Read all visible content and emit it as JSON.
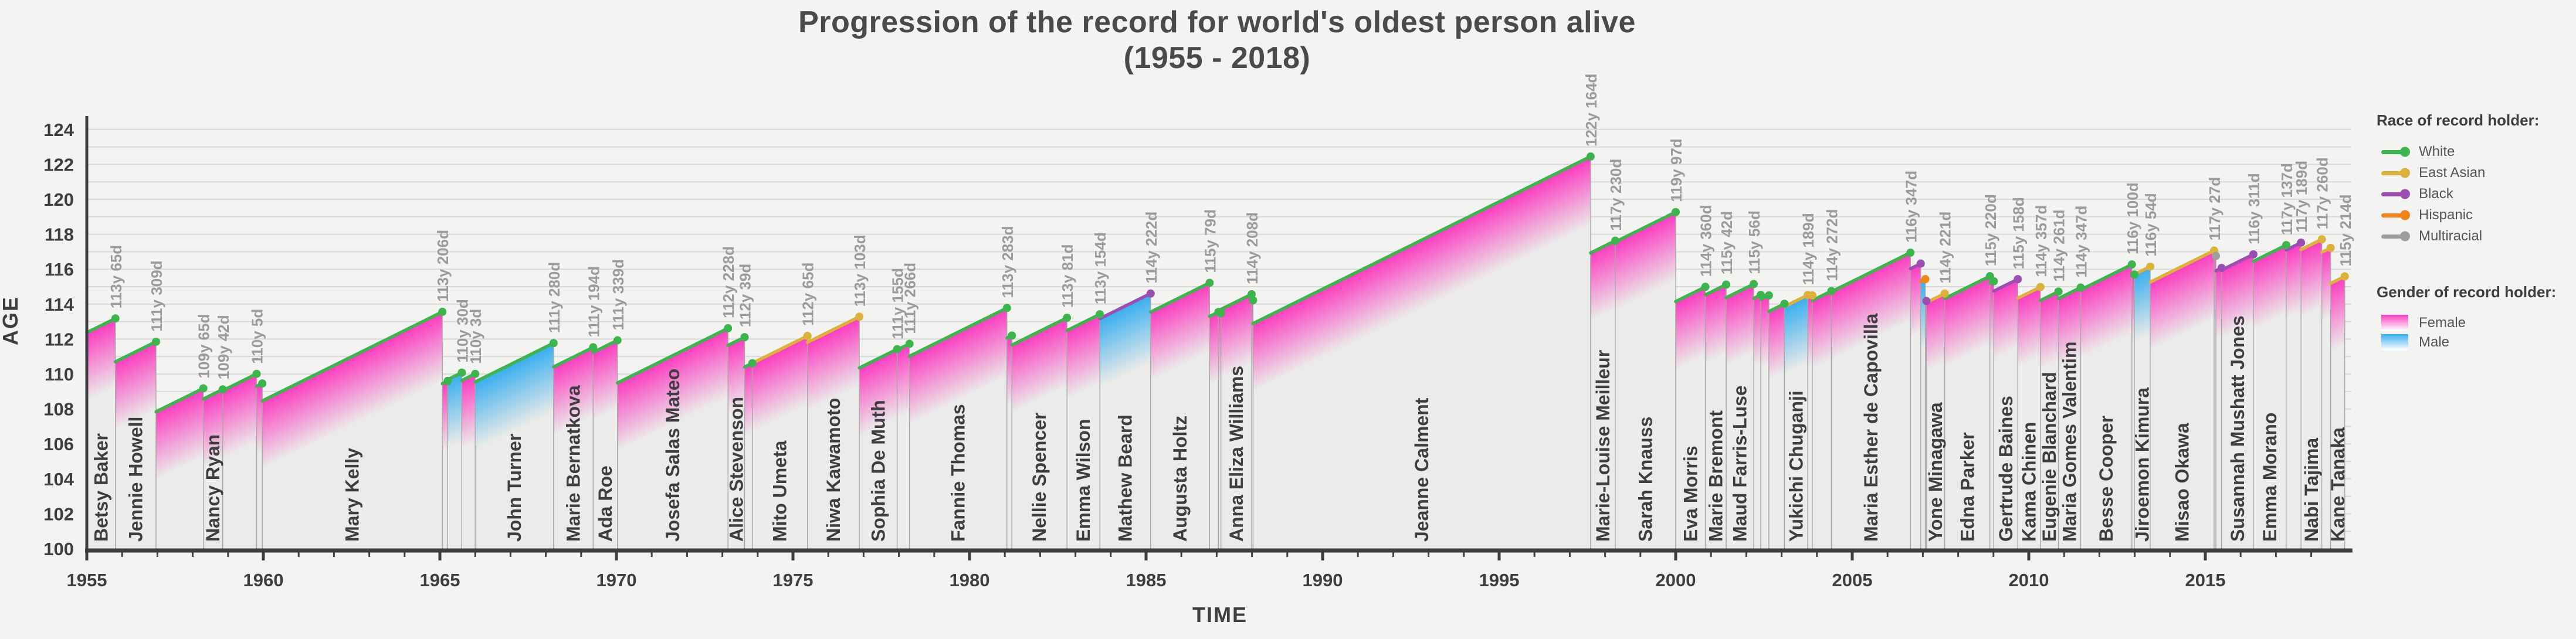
{
  "title": {
    "line1": "Progression of the record for world's oldest person alive",
    "line2": "(1955 - 2018)"
  },
  "axes": {
    "x_label": "TIME",
    "y_label": "AGE",
    "x_ticks": [
      1955,
      1960,
      1965,
      1970,
      1975,
      1980,
      1985,
      1990,
      1995,
      2000,
      2005,
      2010,
      2015
    ],
    "x_range": [
      1955,
      2019
    ],
    "y_ticks": [
      100,
      102,
      104,
      106,
      108,
      110,
      112,
      114,
      116,
      118,
      120,
      122,
      124
    ],
    "y_range": [
      100,
      124
    ],
    "grid_step": 1
  },
  "legend": {
    "race_title": "Race of record holder:",
    "races": [
      {
        "id": "white",
        "label": "White",
        "color": "#3cb64c"
      },
      {
        "id": "east_asian",
        "label": "East Asian",
        "color": "#dcb23a"
      },
      {
        "id": "black",
        "label": "Black",
        "color": "#9c4fb3"
      },
      {
        "id": "hispanic",
        "label": "Hispanic",
        "color": "#f08418"
      },
      {
        "id": "multiracial",
        "label": "Multiracial",
        "color": "#9e9e9e"
      }
    ],
    "gender_title": "Gender of record holder:",
    "genders": [
      {
        "id": "female",
        "label": "Female",
        "color": "#fb3cc1"
      },
      {
        "id": "male",
        "label": "Male",
        "color": "#38aeef"
      }
    ]
  },
  "colors": {
    "background": "#f3f3f1",
    "gridline": "#d9d9d7",
    "axis": "#3e3e42",
    "polygon_fill": "#ebebe9",
    "polygon_border": "#a7a7a5",
    "name_text": "#3e3e42",
    "age_label_text": "#9b9b9f",
    "female": "#fb3cc1",
    "male": "#38aeef"
  },
  "chart_data": {
    "type": "area",
    "subtype": "record-progression-timeline",
    "title": "Progression of the record for world's oldest person alive (1955 - 2018)",
    "xlabel": "TIME",
    "ylabel": "AGE",
    "xlim": [
      1955,
      2019
    ],
    "ylim": [
      100,
      124
    ],
    "grid": "horizontal, every 1 year of age, labels every 2",
    "legend_position": "right",
    "encoding": "Each polygon is one record holder; top edge rises at 1 age-year per calendar year from the year they became the oldest living person to their final age (dot + label). Line/dot color = race, fill gradient = gender.",
    "segments": [
      {
        "name": "Betsy Baker",
        "age_label": "113y 65d",
        "race": "white",
        "gender": "female",
        "end_year": 1955.81,
        "end_age": 113.18
      },
      {
        "name": "Jennie Howell",
        "age_label": "111y 309d",
        "race": "white",
        "gender": "female",
        "end_year": 1956.96,
        "end_age": 111.85
      },
      {
        "name": "",
        "age_label": "109y 65d",
        "race": "white",
        "gender": "female",
        "end_year": 1958.3,
        "end_age": 109.18
      },
      {
        "name": "Nancy Ryan",
        "age_label": "109y 42d",
        "race": "white",
        "gender": "female",
        "end_year": 1958.85,
        "end_age": 109.12
      },
      {
        "name": "",
        "age_label": "110y 5d",
        "race": "white",
        "gender": "female",
        "end_year": 1959.81,
        "end_age": 110.01
      },
      {
        "name": "",
        "age_label": "",
        "race": "white",
        "gender": "female",
        "end_year": 1959.97,
        "end_age": 109.46
      },
      {
        "name": "Mary Kelly",
        "age_label": "113y 206d",
        "race": "white",
        "gender": "female",
        "end_year": 1965.07,
        "end_age": 113.56
      },
      {
        "name": "",
        "age_label": "",
        "race": "white",
        "gender": "female",
        "end_year": 1965.22,
        "end_age": 109.6
      },
      {
        "name": "",
        "age_label": "110y 30d",
        "race": "white",
        "gender": "male",
        "end_year": 1965.62,
        "end_age": 110.08
      },
      {
        "name": "",
        "age_label": "110y 3d",
        "race": "white",
        "gender": "female",
        "end_year": 1966.0,
        "end_age": 110.01
      },
      {
        "name": "John Turner",
        "age_label": "111y 280d",
        "race": "white",
        "gender": "male",
        "end_year": 1968.22,
        "end_age": 111.77
      },
      {
        "name": "Marie Bernatkova",
        "age_label": "111y 194d",
        "race": "white",
        "gender": "female",
        "end_year": 1969.34,
        "end_age": 111.53
      },
      {
        "name": "Ada Roe",
        "age_label": "111y 339d",
        "race": "white",
        "gender": "female",
        "end_year": 1970.03,
        "end_age": 111.93
      },
      {
        "name": "Josefa Salas Mateo",
        "age_label": "112y 228d",
        "race": "white",
        "gender": "female",
        "end_year": 1973.16,
        "end_age": 112.62
      },
      {
        "name": "Alice Stevenson",
        "age_label": "112y 39d",
        "race": "white",
        "gender": "female",
        "end_year": 1973.63,
        "end_age": 112.11
      },
      {
        "name": "",
        "age_label": "",
        "race": "white",
        "gender": "female",
        "end_year": 1973.85,
        "end_age": 110.62
      },
      {
        "name": "Mito Umeta",
        "age_label": "112y 65d",
        "race": "east_asian",
        "gender": "female",
        "end_year": 1975.41,
        "end_age": 112.18
      },
      {
        "name": "Niwa Kawamoto",
        "age_label": "113y 103d",
        "race": "east_asian",
        "gender": "female",
        "end_year": 1976.88,
        "end_age": 113.28
      },
      {
        "name": "Sophia De Muth",
        "age_label": "111y 155d",
        "race": "white",
        "gender": "female",
        "end_year": 1977.95,
        "end_age": 111.42
      },
      {
        "name": "",
        "age_label": "111y 266d",
        "race": "white",
        "gender": "female",
        "end_year": 1978.3,
        "end_age": 111.73
      },
      {
        "name": "Fannie Thomas",
        "age_label": "113y 283d",
        "race": "white",
        "gender": "female",
        "end_year": 1981.06,
        "end_age": 113.78
      },
      {
        "name": "",
        "age_label": "",
        "race": "white",
        "gender": "female",
        "end_year": 1981.2,
        "end_age": 112.2
      },
      {
        "name": "Nellie Spencer",
        "age_label": "113y 81d",
        "race": "white",
        "gender": "female",
        "end_year": 1982.76,
        "end_age": 113.22
      },
      {
        "name": "Emma Wilson",
        "age_label": "113y 154d",
        "race": "white",
        "gender": "female",
        "end_year": 1983.69,
        "end_age": 113.42
      },
      {
        "name": "Mathew Beard",
        "age_label": "114y 222d",
        "race": "black",
        "gender": "male",
        "end_year": 1985.13,
        "end_age": 114.61
      },
      {
        "name": "Augusta Holtz",
        "age_label": "115y 79d",
        "race": "white",
        "gender": "female",
        "end_year": 1986.8,
        "end_age": 115.22
      },
      {
        "name": "",
        "age_label": "",
        "race": "white",
        "gender": "female",
        "end_year": 1987.05,
        "end_age": 113.55
      },
      {
        "name": "",
        "age_label": "",
        "race": "white",
        "gender": "female",
        "end_year": 1987.12,
        "end_age": 113.48
      },
      {
        "name": "Anna Eliza Williams",
        "age_label": "114y 208d",
        "race": "white",
        "gender": "female",
        "end_year": 1987.99,
        "end_age": 114.57
      },
      {
        "name": "",
        "age_label": "",
        "race": "white",
        "gender": "female",
        "end_year": 1988.03,
        "end_age": 114.22
      },
      {
        "name": "Jeanne Calment",
        "age_label": "122y 164d",
        "race": "white",
        "gender": "female",
        "end_year": 1997.59,
        "end_age": 122.45
      },
      {
        "name": "Marie-Louise Meilleur",
        "age_label": "117y 230d",
        "race": "white",
        "gender": "female",
        "end_year": 1998.29,
        "end_age": 117.63
      },
      {
        "name": "Sarah Knauss",
        "age_label": "119y 97d",
        "race": "white",
        "gender": "female",
        "end_year": 2000.0,
        "end_age": 119.27
      },
      {
        "name": "Eva Morris",
        "age_label": "114y 360d",
        "race": "white",
        "gender": "female",
        "end_year": 2000.84,
        "end_age": 114.99
      },
      {
        "name": "Marie Bremont",
        "age_label": "115y 42d",
        "race": "white",
        "gender": "female",
        "end_year": 2001.43,
        "end_age": 115.12
      },
      {
        "name": "Maud Farris-Luse",
        "age_label": "115y 56d",
        "race": "white",
        "gender": "female",
        "end_year": 2002.21,
        "end_age": 115.15
      },
      {
        "name": "",
        "age_label": "",
        "race": "white",
        "gender": "female",
        "end_year": 2002.41,
        "end_age": 114.53
      },
      {
        "name": "",
        "age_label": "",
        "race": "white",
        "gender": "female",
        "end_year": 2002.64,
        "end_age": 114.5
      },
      {
        "name": "",
        "age_label": "",
        "race": "white",
        "gender": "female",
        "end_year": 2003.08,
        "end_age": 114.02
      },
      {
        "name": "Yukichi Chuganji",
        "age_label": "114y 189d",
        "race": "east_asian",
        "gender": "male",
        "end_year": 2003.74,
        "end_age": 114.52
      },
      {
        "name": "",
        "age_label": "",
        "race": "east_asian",
        "gender": "female",
        "end_year": 2003.87,
        "end_age": 114.5
      },
      {
        "name": "",
        "age_label": "114y 272d",
        "race": "white",
        "gender": "female",
        "end_year": 2004.41,
        "end_age": 114.75
      },
      {
        "name": "Maria Esther de Capovilla",
        "age_label": "116y 347d",
        "race": "white",
        "gender": "female",
        "end_year": 2006.65,
        "end_age": 116.95
      },
      {
        "name": "",
        "age_label": "",
        "race": "black",
        "gender": "female",
        "end_year": 2006.94,
        "end_age": 116.32
      },
      {
        "name": "",
        "age_label": "",
        "race": "hispanic",
        "gender": "male",
        "end_year": 2007.07,
        "end_age": 115.43
      },
      {
        "name": "",
        "age_label": "",
        "race": "black",
        "gender": "female",
        "end_year": 2007.1,
        "end_age": 114.18
      },
      {
        "name": "Yone Minagawa",
        "age_label": "114y 221d",
        "race": "east_asian",
        "gender": "female",
        "end_year": 2007.62,
        "end_age": 114.61
      },
      {
        "name": "Edna Parker",
        "age_label": "115y 220d",
        "race": "white",
        "gender": "female",
        "end_year": 2008.9,
        "end_age": 115.6
      },
      {
        "name": "",
        "age_label": "",
        "race": "white",
        "gender": "female",
        "end_year": 2009.01,
        "end_age": 115.31
      },
      {
        "name": "Gertrude Baines",
        "age_label": "115y 158d",
        "race": "black",
        "gender": "female",
        "end_year": 2009.69,
        "end_age": 115.43
      },
      {
        "name": "Kama Chinen",
        "age_label": "114y 357d",
        "race": "east_asian",
        "gender": "female",
        "end_year": 2010.33,
        "end_age": 114.98
      },
      {
        "name": "Eugenie Blanchard",
        "age_label": "114y 261d",
        "race": "white",
        "gender": "female",
        "end_year": 2010.84,
        "end_age": 114.72
      },
      {
        "name": "Maria Gomes Valentim",
        "age_label": "114y 347d",
        "race": "white",
        "gender": "female",
        "end_year": 2011.47,
        "end_age": 114.95
      },
      {
        "name": "Besse Cooper",
        "age_label": "116y 100d",
        "race": "white",
        "gender": "female",
        "end_year": 2012.92,
        "end_age": 116.27
      },
      {
        "name": "",
        "age_label": "",
        "race": "white",
        "gender": "female",
        "end_year": 2012.99,
        "end_age": 115.7
      },
      {
        "name": "Jiroemon Kimura",
        "age_label": "116y 54d",
        "race": "east_asian",
        "gender": "male",
        "end_year": 2013.44,
        "end_age": 116.15
      },
      {
        "name": "Misao Okawa",
        "age_label": "117y 27d",
        "race": "east_asian",
        "gender": "female",
        "end_year": 2015.25,
        "end_age": 117.07
      },
      {
        "name": "",
        "age_label": "",
        "race": "multiracial",
        "gender": "female",
        "end_year": 2015.3,
        "end_age": 116.76
      },
      {
        "name": "",
        "age_label": "",
        "race": "black",
        "gender": "female",
        "end_year": 2015.46,
        "end_age": 116.07
      },
      {
        "name": "Susannah Mushatt Jones",
        "age_label": "116y 311d",
        "race": "black",
        "gender": "female",
        "end_year": 2016.36,
        "end_age": 116.85
      },
      {
        "name": "Emma Morano",
        "age_label": "117y 137d",
        "race": "white",
        "gender": "female",
        "end_year": 2017.29,
        "end_age": 117.38
      },
      {
        "name": "",
        "age_label": "117y 189d",
        "race": "black",
        "gender": "female",
        "end_year": 2017.71,
        "end_age": 117.52
      },
      {
        "name": "Nabi Tajima",
        "age_label": "117y 260d",
        "race": "east_asian",
        "gender": "female",
        "end_year": 2018.3,
        "end_age": 117.71
      },
      {
        "name": "",
        "age_label": "",
        "race": "east_asian",
        "gender": "female",
        "end_year": 2018.55,
        "end_age": 117.22
      },
      {
        "name": "Kane Tanaka",
        "age_label": "115y 214d",
        "race": "east_asian",
        "gender": "female",
        "end_year": 2018.95,
        "end_age": 115.59
      }
    ]
  }
}
